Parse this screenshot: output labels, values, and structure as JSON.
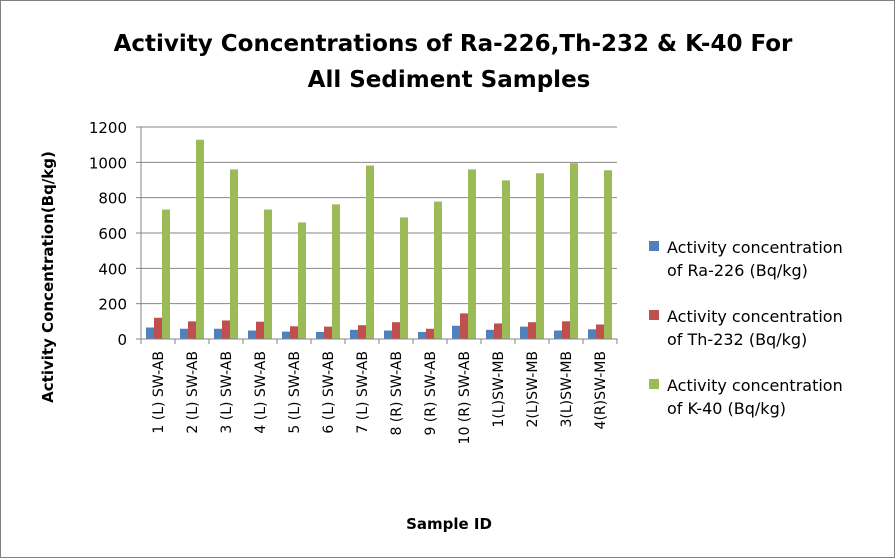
{
  "chart_data": {
    "type": "bar",
    "title_lines": [
      "Activity Concentrations of  Ra-226,Th-232 & K-40 For",
      "All Sediment Samples"
    ],
    "xlabel": "Sample ID",
    "ylabel": "Activity Concentration(Bq/kg)",
    "ylim": [
      0,
      1200
    ],
    "yticks": [
      0,
      200,
      400,
      600,
      800,
      1000,
      1200
    ],
    "grid": true,
    "legend_position": "right",
    "categories": [
      "1 (L) SW-AB",
      "2 (L) SW-AB",
      "3 (L) SW-AB",
      "4 (L) SW-AB",
      "5 (L) SW-AB",
      "6 (L) SW-AB",
      "7 (L) SW-AB",
      "8 (R) SW-AB",
      "9 (R) SW-AB",
      "10 (R) SW-AB",
      "1(L)SW-MB",
      "2(L)SW-MB",
      "3(L)SW-MB",
      "4(R)SW-MB"
    ],
    "series": [
      {
        "name": "Activity concentration of Ra-226 (Bq/kg)",
        "legend_lines": [
          "Activity concentration",
          "of Ra-226 (Bq/kg)"
        ],
        "color": "#4F81BD",
        "values": [
          65,
          58,
          58,
          48,
          42,
          40,
          52,
          48,
          40,
          75,
          52,
          70,
          48,
          55
        ]
      },
      {
        "name": "Activity concentration of Th-232 (Bq/kg)",
        "legend_lines": [
          "Activity concentration",
          "of Th-232 (Bq/kg)"
        ],
        "color": "#C0504D",
        "values": [
          120,
          100,
          105,
          98,
          72,
          70,
          78,
          95,
          58,
          145,
          88,
          95,
          100,
          82
        ]
      },
      {
        "name": "Activity concentration of K-40 (Bq/kg)",
        "legend_lines": [
          "Activity concentration",
          "of K-40 (Bq/kg)"
        ],
        "color": "#9BBB59",
        "values": [
          733,
          1128,
          960,
          733,
          660,
          762,
          982,
          688,
          778,
          960,
          898,
          938,
          995,
          955
        ]
      }
    ]
  }
}
